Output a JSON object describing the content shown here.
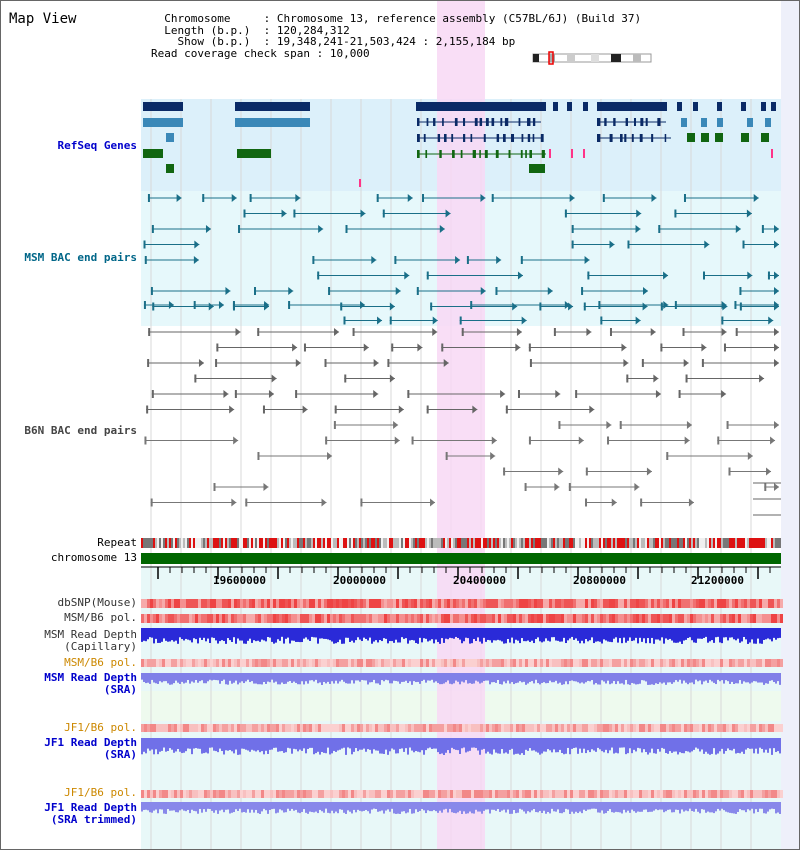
{
  "page": {
    "title": "Map View"
  },
  "info": {
    "chromosome_label": "Chromosome",
    "chromosome_value": "Chromosome 13, reference assembly (C57BL/6J) (Build 37)",
    "length_label": "Length (b.p.)",
    "length_value": "120,284,312",
    "show_label": "Show (b.p.)",
    "show_value": "19,348,241-21,503,424 : 2,155,184 bp",
    "coverage_label": "Read coverage check span",
    "coverage_value": "10,000"
  },
  "tracks": {
    "refseq": {
      "label": "RefSeq Genes",
      "color": "#0000cc"
    },
    "msm_bac": {
      "label": "MSM BAC end pairs",
      "color": "#006688"
    },
    "b6n_bac": {
      "label": "B6N BAC end pairs",
      "color": "#444444"
    },
    "repeat": {
      "label": "Repeat"
    },
    "chromosome": {
      "label": "chromosome 13"
    },
    "dbsnp": {
      "label": "dbSNP(Mouse)"
    },
    "msm_b6_pol_1": {
      "label": "MSM/B6 pol."
    },
    "msm_depth_cap": {
      "line1": "MSM Read Depth",
      "line2": "(Capillary)"
    },
    "msm_b6_pol_2": {
      "label": "MSM/B6 pol.",
      "color": "#cc8800"
    },
    "msm_depth_sra": {
      "line1": "MSM Read Depth",
      "line2": "(SRA)",
      "color": "#0000cc"
    },
    "jf1_b6_pol_1": {
      "label": "JF1/B6 pol.",
      "color": "#cc8800"
    },
    "jf1_depth_sra": {
      "line1": "JF1 Read Depth",
      "line2": "(SRA)",
      "color": "#0000cc"
    },
    "jf1_b6_pol_2": {
      "label": "JF1/B6 pol.",
      "color": "#cc8800"
    },
    "jf1_depth_trim": {
      "line1": "JF1 Read Depth",
      "line2": "(SRA trimmed)",
      "color": "#0000cc"
    }
  },
  "scale": {
    "ticks": [
      "19600000",
      "20000000",
      "20400000",
      "20800000",
      "21200000"
    ]
  },
  "colors": {
    "highlight": "#f8d8f4",
    "refseq_bg": "#dcf0fa",
    "msm_bg": "#e6f8fb",
    "depth_bg": "#e8f8f8",
    "gene_navy": "#0a2a66",
    "gene_steel": "#3a88b8",
    "gene_green": "#116611",
    "chrom_green": "#006600"
  }
}
